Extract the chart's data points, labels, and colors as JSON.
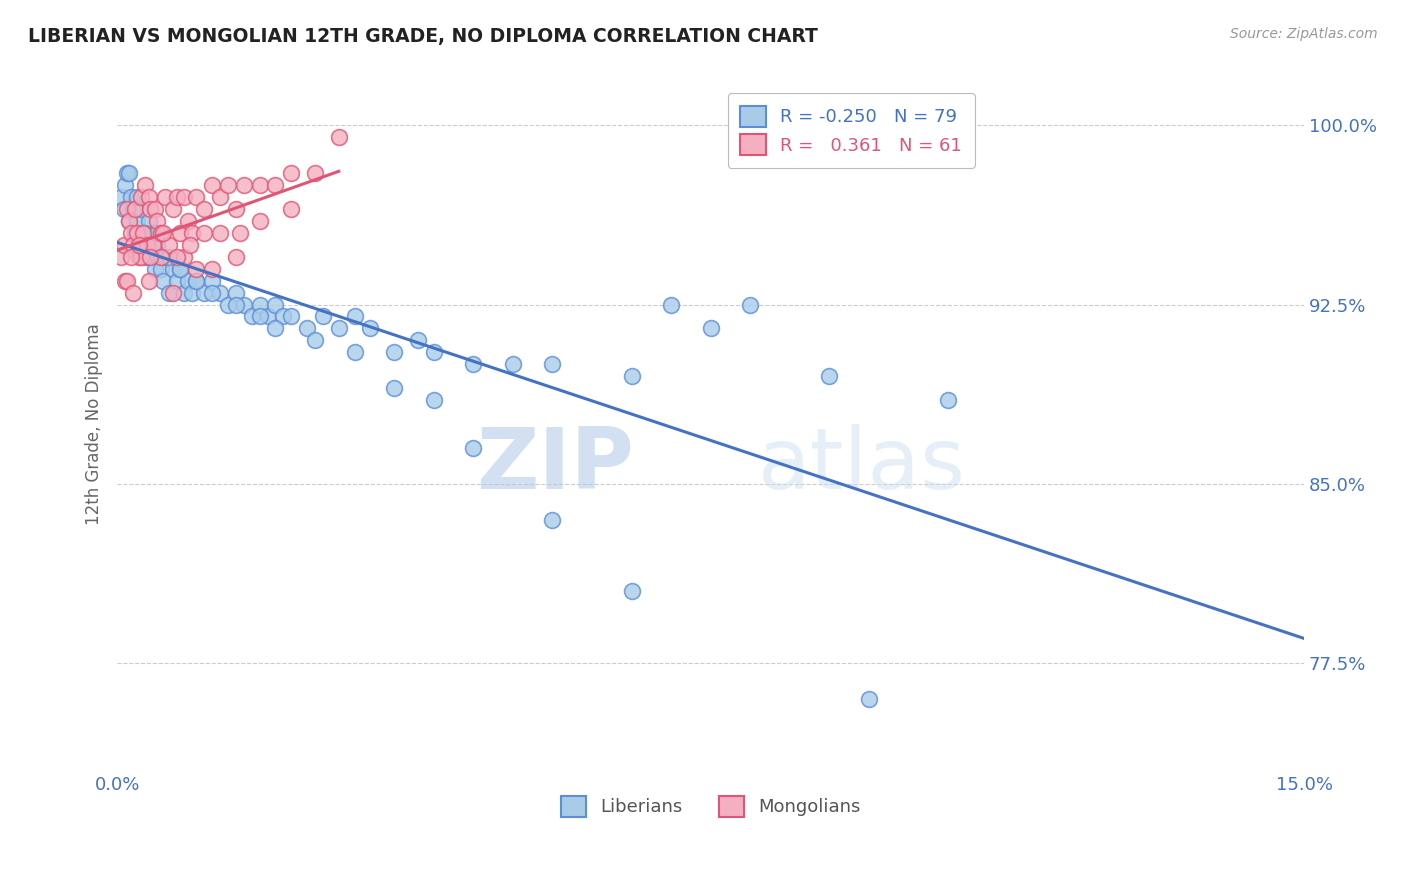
{
  "title": "LIBERIAN VS MONGOLIAN 12TH GRADE, NO DIPLOMA CORRELATION CHART",
  "source": "Source: ZipAtlas.com",
  "ylabel_label": "12th Grade, No Diploma",
  "yticks": [
    77.5,
    85.0,
    92.5,
    100.0
  ],
  "xlim": [
    0.0,
    15.0
  ],
  "ylim": [
    73.0,
    102.0
  ],
  "legend_R_blue": "-0.250",
  "legend_N_blue": "79",
  "legend_R_pink": "0.361",
  "legend_N_pink": "61",
  "blue_color": "#a8cce8",
  "pink_color": "#f4afc0",
  "blue_edge_color": "#5b8dd9",
  "pink_edge_color": "#e05575",
  "blue_line_color": "#4472c4",
  "pink_line_color": "#e05575",
  "watermark_zip": "ZIP",
  "watermark_atlas": "atlas",
  "blue_scatter_x": [
    0.05,
    0.08,
    0.1,
    0.12,
    0.15,
    0.18,
    0.2,
    0.22,
    0.25,
    0.28,
    0.3,
    0.32,
    0.35,
    0.38,
    0.4,
    0.42,
    0.45,
    0.48,
    0.5,
    0.52,
    0.55,
    0.58,
    0.6,
    0.65,
    0.7,
    0.75,
    0.8,
    0.85,
    0.9,
    0.95,
    1.0,
    1.1,
    1.2,
    1.3,
    1.4,
    1.5,
    1.6,
    1.7,
    1.8,
    1.9,
    2.0,
    2.1,
    2.2,
    2.4,
    2.6,
    2.8,
    3.0,
    3.2,
    3.5,
    3.8,
    4.0,
    4.5,
    5.0,
    5.5,
    6.5,
    7.0,
    7.5,
    8.0,
    9.0,
    10.5,
    0.15,
    0.25,
    0.35,
    0.5,
    0.65,
    0.8,
    1.0,
    1.2,
    1.5,
    1.8,
    2.0,
    2.5,
    3.0,
    3.5,
    4.0,
    4.5,
    5.5,
    6.5,
    9.5
  ],
  "blue_scatter_y": [
    97.0,
    96.5,
    97.5,
    98.0,
    96.0,
    97.0,
    96.5,
    95.5,
    96.0,
    95.0,
    96.5,
    95.5,
    94.5,
    95.0,
    96.0,
    94.5,
    95.5,
    94.0,
    95.0,
    94.5,
    94.0,
    93.5,
    94.5,
    93.0,
    94.0,
    93.5,
    94.0,
    93.0,
    93.5,
    93.0,
    93.5,
    93.0,
    93.5,
    93.0,
    92.5,
    93.0,
    92.5,
    92.0,
    92.5,
    92.0,
    92.5,
    92.0,
    92.0,
    91.5,
    92.0,
    91.5,
    92.0,
    91.5,
    90.5,
    91.0,
    90.5,
    90.0,
    90.0,
    90.0,
    89.5,
    92.5,
    91.5,
    92.5,
    89.5,
    88.5,
    98.0,
    97.0,
    95.5,
    95.5,
    94.5,
    94.0,
    93.5,
    93.0,
    92.5,
    92.0,
    91.5,
    91.0,
    90.5,
    89.0,
    88.5,
    86.5,
    83.5,
    80.5,
    76.0
  ],
  "pink_scatter_x": [
    0.05,
    0.08,
    0.1,
    0.12,
    0.15,
    0.18,
    0.2,
    0.22,
    0.25,
    0.28,
    0.3,
    0.32,
    0.35,
    0.38,
    0.4,
    0.42,
    0.45,
    0.48,
    0.5,
    0.55,
    0.6,
    0.65,
    0.7,
    0.75,
    0.8,
    0.85,
    0.9,
    0.95,
    1.0,
    1.1,
    1.2,
    1.3,
    1.4,
    1.5,
    1.6,
    1.8,
    2.0,
    2.2,
    2.5,
    2.8,
    0.12,
    0.2,
    0.3,
    0.4,
    0.55,
    0.7,
    0.85,
    1.0,
    1.2,
    1.5,
    0.18,
    0.28,
    0.42,
    0.58,
    0.75,
    0.92,
    1.1,
    1.3,
    1.55,
    1.8,
    2.2
  ],
  "pink_scatter_y": [
    94.5,
    95.0,
    93.5,
    96.5,
    96.0,
    95.5,
    95.0,
    96.5,
    95.5,
    94.5,
    97.0,
    95.5,
    97.5,
    95.0,
    97.0,
    96.5,
    95.0,
    96.5,
    96.0,
    95.5,
    97.0,
    95.0,
    96.5,
    97.0,
    95.5,
    97.0,
    96.0,
    95.5,
    97.0,
    96.5,
    97.5,
    97.0,
    97.5,
    96.5,
    97.5,
    97.5,
    97.5,
    98.0,
    98.0,
    99.5,
    93.5,
    93.0,
    94.5,
    93.5,
    94.5,
    93.0,
    94.5,
    94.0,
    94.0,
    94.5,
    94.5,
    95.0,
    94.5,
    95.5,
    94.5,
    95.0,
    95.5,
    95.5,
    95.5,
    96.0,
    96.5
  ]
}
